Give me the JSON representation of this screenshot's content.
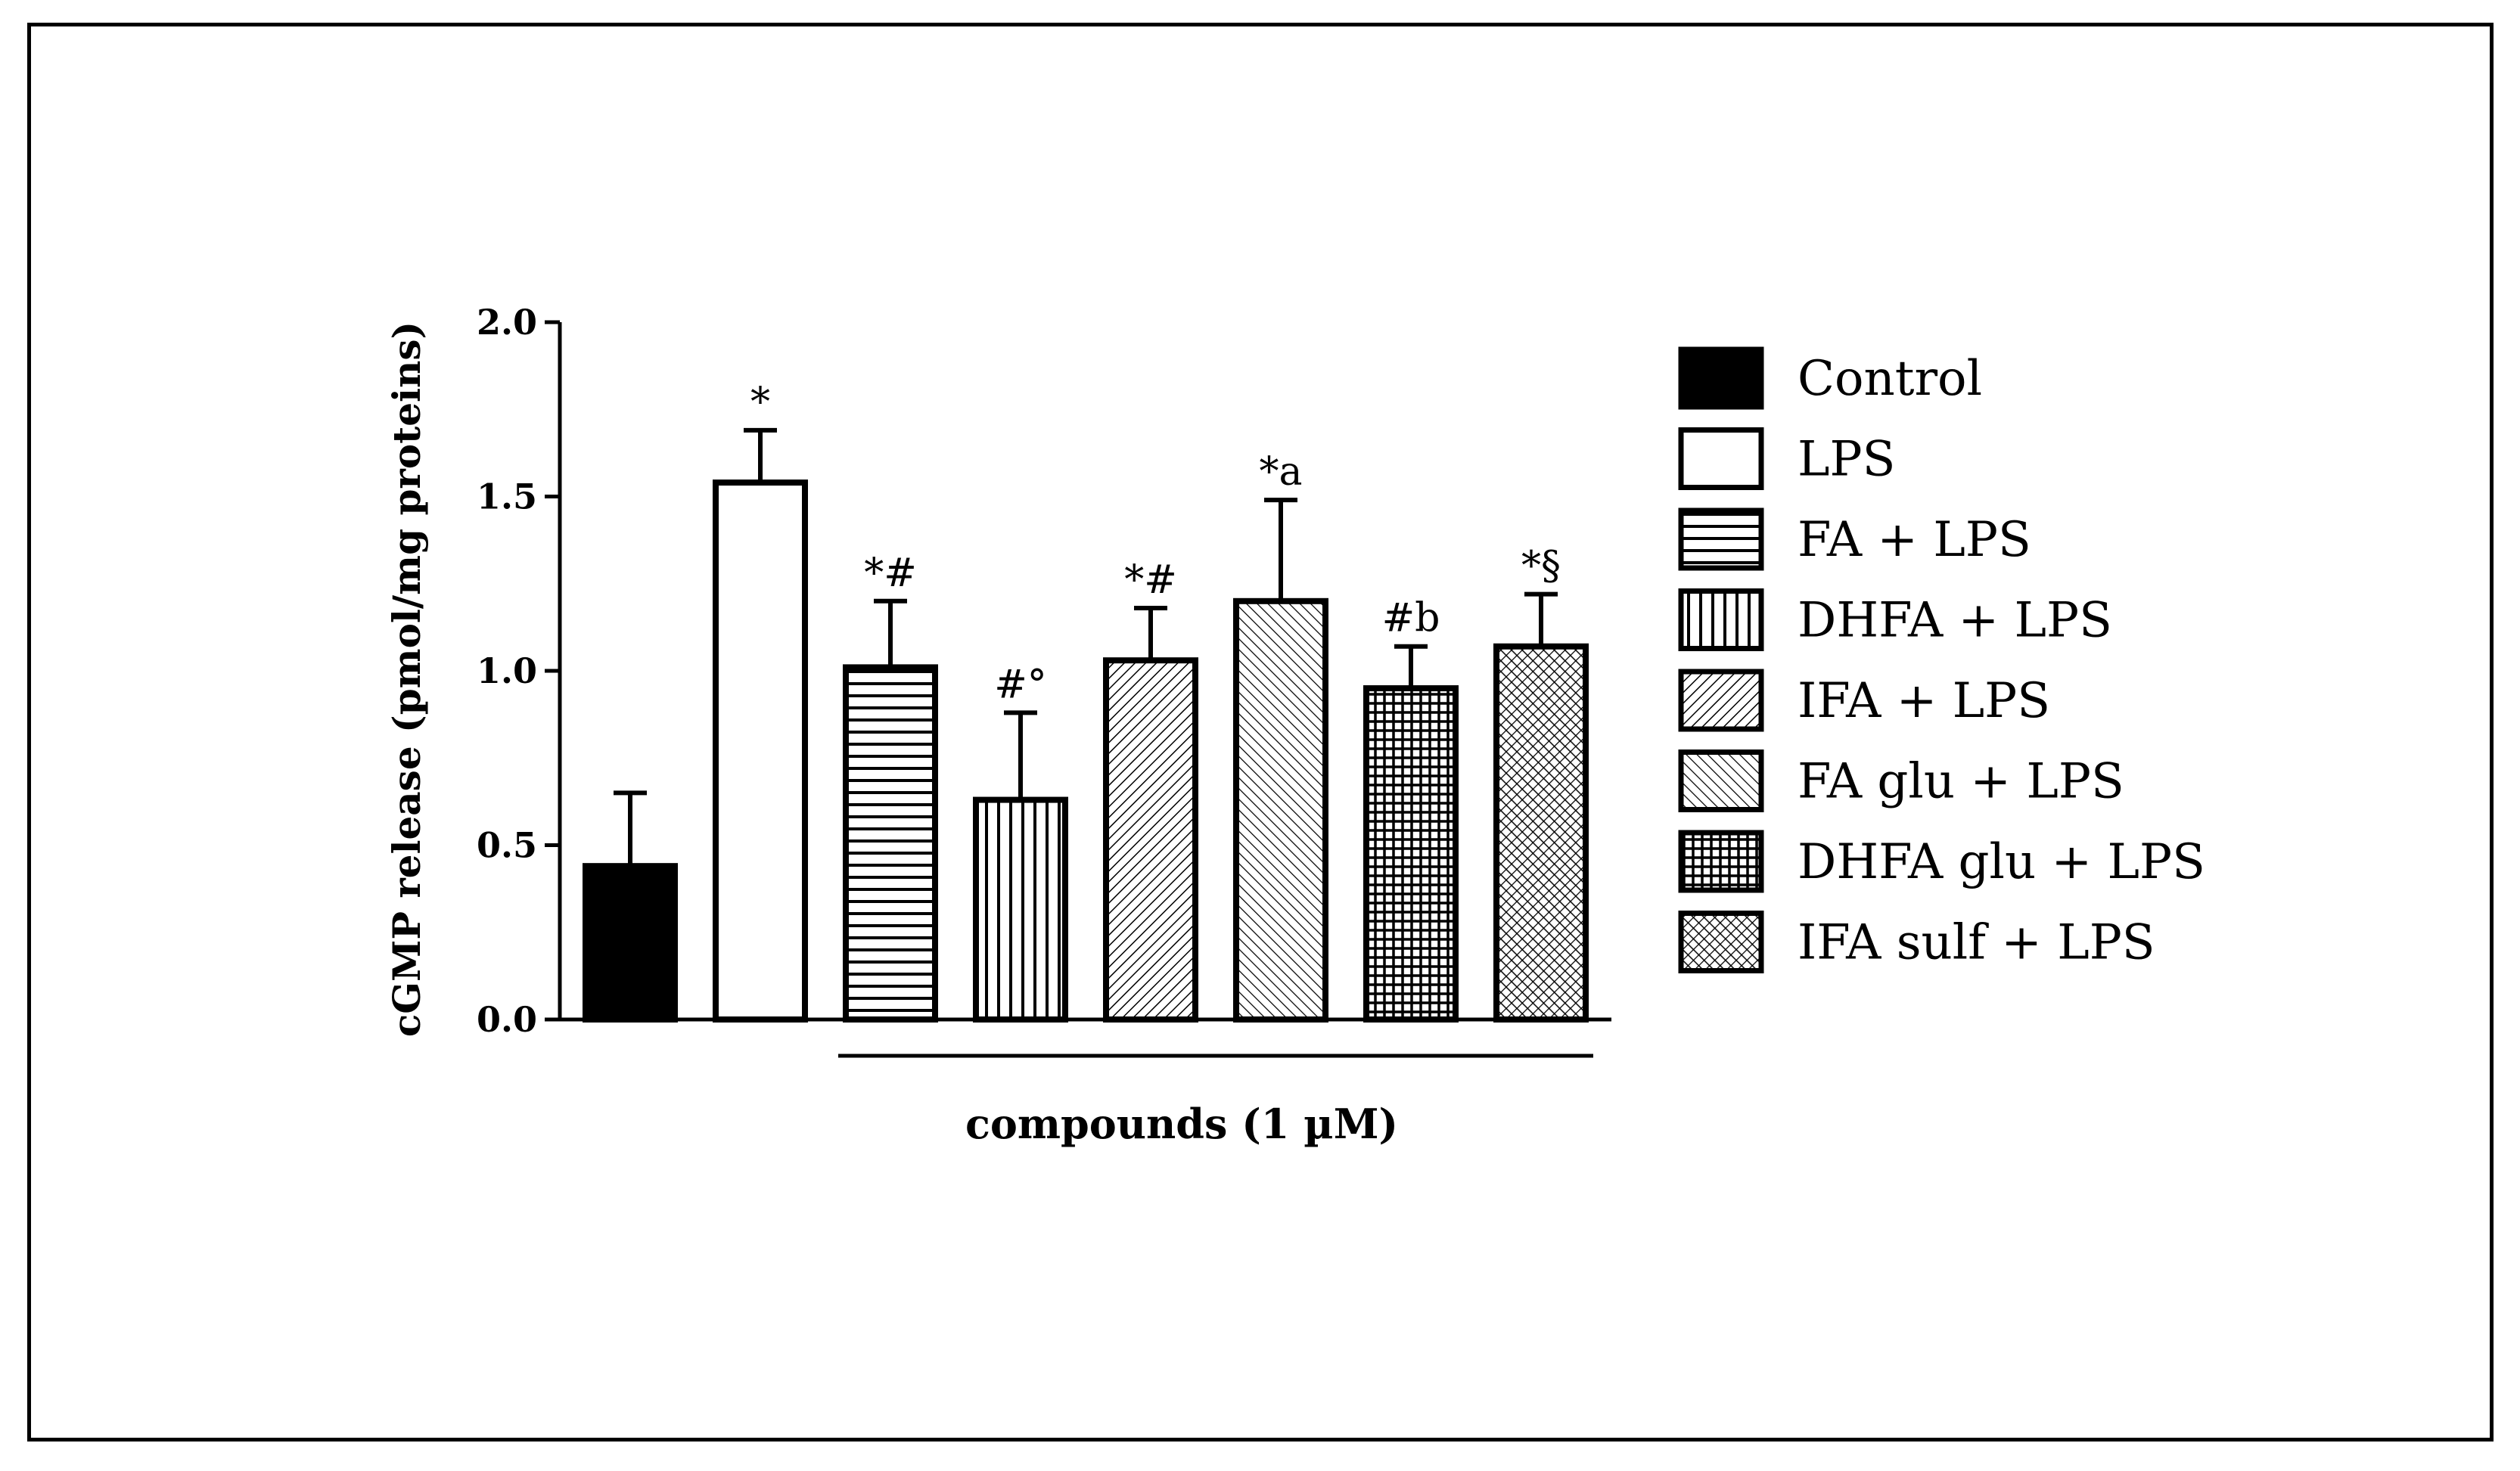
{
  "chart_data": {
    "type": "bar",
    "ylabel": "cGMP release (pmol/mg proteins)",
    "xlabel": "compounds (1 µM)",
    "ylim": [
      0,
      2.0
    ],
    "yticks": [
      0.0,
      0.5,
      1.0,
      1.5,
      2.0
    ],
    "ytick_labels": [
      "0.0",
      "0.5",
      "1.0",
      "1.5",
      "2.0"
    ],
    "categories": [
      "Control",
      "LPS",
      "FA + LPS",
      "DHFA + LPS",
      "IFA + LPS",
      "FA glu + LPS",
      "DHFA glu + LPS",
      "IFA sulf + LPS"
    ],
    "values": [
      0.44,
      1.54,
      1.01,
      0.63,
      1.03,
      1.2,
      0.95,
      1.07
    ],
    "errors": [
      0.21,
      0.15,
      0.19,
      0.25,
      0.15,
      0.29,
      0.12,
      0.15
    ],
    "annotations": [
      "",
      "*",
      "*#",
      "#°",
      "*#",
      "*a",
      "#b",
      "*§"
    ],
    "patterns": [
      "solid",
      "white",
      "hlines",
      "vlines",
      "diag-fine",
      "diag-wide",
      "grid",
      "crosshatch"
    ],
    "legend": [
      "Control",
      "LPS",
      "FA + LPS",
      "DHFA + LPS",
      "IFA + LPS",
      "FA glu + LPS",
      "DHFA glu + LPS",
      "IFA sulf + LPS"
    ],
    "legend_position": "right",
    "colors": {
      "ink": "#000000",
      "paper": "#ffffff"
    }
  }
}
